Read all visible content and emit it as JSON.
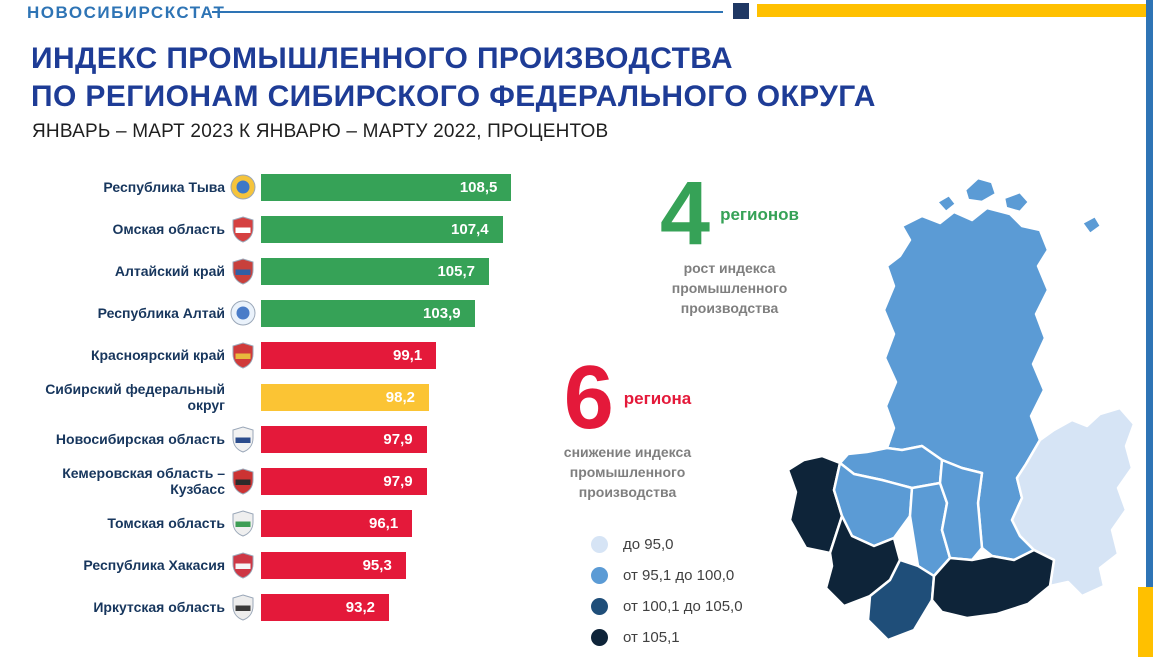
{
  "theme": {
    "accent_blue": "#2E74B5",
    "title_blue": "#1E3C96",
    "text_navy": "#17365D",
    "gray_text": "#7F7F7F",
    "yellow": "#FFC000",
    "header_square_blue": "#1F3864"
  },
  "header": {
    "brand": "НОВОСИБИРСКСТАТ"
  },
  "title": {
    "line1": "ИНДЕКС ПРОМЫШЛЕННОГО ПРОИЗВОДСТВА",
    "line2": "ПО РЕГИОНАМ СИБИРСКОГО ФЕДЕРАЛЬНОГО ОКРУГА",
    "subtitle": "ЯНВАРЬ – МАРТ 2023 К ЯНВАРЮ – МАРТУ 2022, ПРОЦЕНТОВ"
  },
  "chart_data": {
    "type": "bar",
    "orientation": "horizontal",
    "title": "Индекс промышленного производства по регионам Сибирского федерального округа",
    "unit": "процентов",
    "baseline": 100,
    "colors": {
      "growth": "#36A257",
      "decline": "#E4193A",
      "district": "#FBC434"
    },
    "categories": [
      "Республика Тыва",
      "Омская область",
      "Алтайский край",
      "Республика Алтай",
      "Красноярский край",
      "Сибирский федеральный округ",
      "Новосибирская область",
      "Кемеровская область – Кузбасс",
      "Томская область",
      "Республика Хакасия",
      "Иркутская область"
    ],
    "values": [
      108.5,
      107.4,
      105.7,
      103.9,
      99.1,
      98.2,
      97.9,
      97.9,
      96.1,
      95.3,
      93.2
    ],
    "regions": [
      {
        "name": "Республика Тыва",
        "value": 108.5,
        "value_label": "108,5",
        "group": "growth",
        "icon": {
          "shape": "circle",
          "c1": "#F5C43C",
          "c2": "#3C78C8"
        }
      },
      {
        "name": "Омская область",
        "value": 107.4,
        "value_label": "107,4",
        "group": "growth",
        "icon": {
          "shape": "shield",
          "c1": "#D54040",
          "c2": "#FFFFFF"
        }
      },
      {
        "name": "Алтайский край",
        "value": 105.7,
        "value_label": "105,7",
        "group": "growth",
        "icon": {
          "shape": "shield",
          "c1": "#C8403C",
          "c2": "#2F5FA5"
        }
      },
      {
        "name": "Республика Алтай",
        "value": 103.9,
        "value_label": "103,9",
        "group": "growth",
        "icon": {
          "shape": "circle",
          "c1": "#EAF2FB",
          "c2": "#4A7CC8"
        }
      },
      {
        "name": "Красноярский край",
        "value": 99.1,
        "value_label": "99,1",
        "group": "decline",
        "icon": {
          "shape": "shield",
          "c1": "#D03A3A",
          "c2": "#E8B93C"
        }
      },
      {
        "name": "Сибирский федеральный округ",
        "value": 98.2,
        "value_label": "98,2",
        "group": "district",
        "icon": null
      },
      {
        "name": "Новосибирская область",
        "value": 97.9,
        "value_label": "97,9",
        "group": "decline",
        "icon": {
          "shape": "shield",
          "c1": "#F2F2F2",
          "c2": "#2B4C8C"
        }
      },
      {
        "name": "Кемеровская область – Кузбасс",
        "value": 97.9,
        "value_label": "97,9",
        "group": "decline",
        "icon": {
          "shape": "shield",
          "c1": "#CC3333",
          "c2": "#2B2B2B"
        }
      },
      {
        "name": "Томская область",
        "value": 96.1,
        "value_label": "96,1",
        "group": "decline",
        "icon": {
          "shape": "shield",
          "c1": "#EFEFEF",
          "c2": "#3E9E55"
        }
      },
      {
        "name": "Республика Хакасия",
        "value": 95.3,
        "value_label": "95,3",
        "group": "decline",
        "icon": {
          "shape": "shield",
          "c1": "#CE3745",
          "c2": "#F5F5F5"
        }
      },
      {
        "name": "Иркутская область",
        "value": 93.2,
        "value_label": "93,2",
        "group": "decline",
        "icon": {
          "shape": "shield",
          "c1": "#EDEDED",
          "c2": "#3A3A3A"
        }
      }
    ]
  },
  "stats": {
    "growth": {
      "number": "4",
      "unit": "регионов",
      "lines": [
        "рост индекса",
        "промышленного",
        "производства"
      ],
      "color": "#36A257"
    },
    "decline": {
      "number": "6",
      "unit": "региона",
      "lines": [
        "снижение индекса",
        "промышленного",
        "производства"
      ],
      "color": "#E4193A"
    }
  },
  "map_legend": {
    "items": [
      {
        "label": "до 95,0",
        "color": "#D6E4F5"
      },
      {
        "label": "от 95,1 до 100,0",
        "color": "#5B9BD5"
      },
      {
        "label": "от 100,1 до 105,0",
        "color": "#1F4E79"
      },
      {
        "label": "от 105,1",
        "color": "#0E2439"
      }
    ]
  },
  "map": {
    "region_buckets": {
      "islands": 1,
      "krasnoyarsk": 1,
      "irkutsk": 0,
      "tomsk": 1,
      "omsk": 3,
      "novosibirsk": 1,
      "kemerovo": 1,
      "khakasia": 1,
      "altai-krai": 3,
      "altai-republic": 2,
      "tyva": 3
    }
  }
}
